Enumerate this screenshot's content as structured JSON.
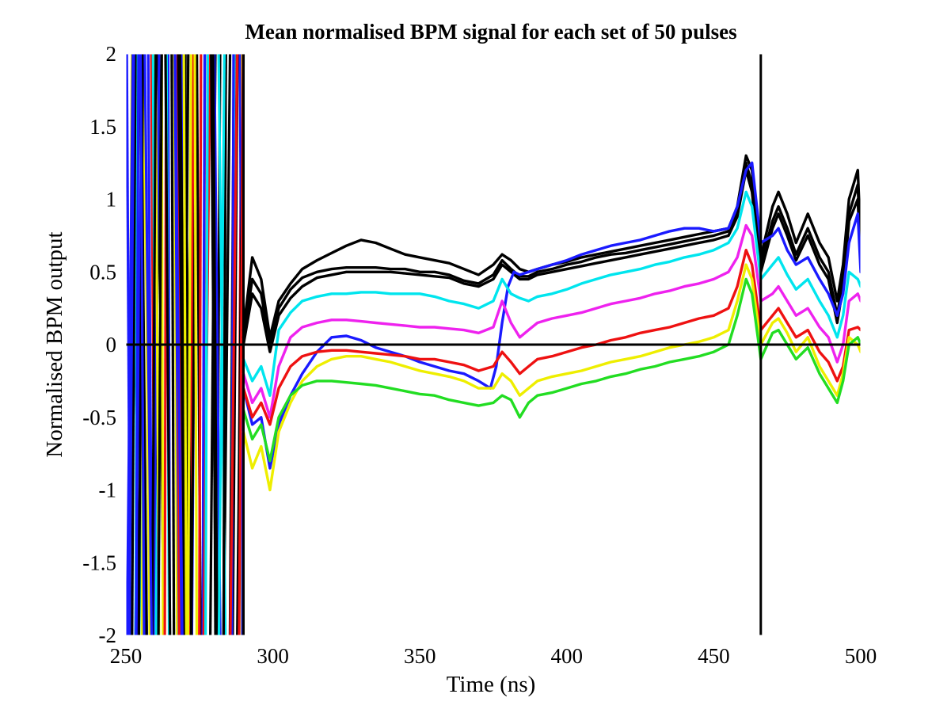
{
  "chart_data": {
    "type": "line",
    "title": "Mean normalised BPM signal for each set of 50 pulses",
    "xlabel": "Time (ns)",
    "ylabel": "Normalised BPM output",
    "xlim": [
      250,
      500
    ],
    "ylim": [
      -2,
      2
    ],
    "xticks": [
      "250",
      "300",
      "350",
      "400",
      "450",
      "500"
    ],
    "yticks": [
      "-2",
      "-1.5",
      "-1",
      "-0.5",
      "0",
      "0.5",
      "1",
      "1.5",
      "2"
    ],
    "grid": false,
    "legend": "none",
    "reference_lines": {
      "horizontal_y": 0,
      "vertical_x": [
        290,
        466
      ]
    },
    "series": [
      {
        "color": "#000000",
        "x": [
          290,
          293,
          296,
          299,
          302,
          306,
          310,
          315,
          320,
          325,
          330,
          335,
          340,
          345,
          350,
          355,
          360,
          365,
          370,
          375,
          378,
          381,
          384,
          387,
          390,
          395,
          400,
          405,
          410,
          415,
          420,
          425,
          430,
          435,
          440,
          445,
          450,
          455,
          458,
          461,
          463,
          466,
          470,
          472,
          475,
          478,
          482,
          486,
          489,
          492,
          494,
          496,
          499,
          500
        ],
        "values": [
          0.1,
          0.6,
          0.45,
          0.05,
          0.3,
          0.42,
          0.52,
          0.58,
          0.63,
          0.68,
          0.72,
          0.7,
          0.66,
          0.62,
          0.6,
          0.58,
          0.56,
          0.52,
          0.48,
          0.55,
          0.62,
          0.58,
          0.52,
          0.5,
          0.52,
          0.55,
          0.57,
          0.6,
          0.62,
          0.64,
          0.66,
          0.68,
          0.7,
          0.72,
          0.74,
          0.76,
          0.78,
          0.8,
          0.95,
          1.3,
          1.2,
          0.6,
          0.95,
          1.05,
          0.9,
          0.7,
          0.9,
          0.7,
          0.6,
          0.3,
          0.55,
          1.0,
          1.2,
          0.7
        ]
      },
      {
        "color": "#000000",
        "x": [
          290,
          293,
          296,
          299,
          302,
          306,
          310,
          315,
          320,
          325,
          330,
          335,
          340,
          345,
          350,
          355,
          360,
          365,
          370,
          375,
          378,
          381,
          384,
          387,
          390,
          395,
          400,
          405,
          410,
          415,
          420,
          425,
          430,
          435,
          440,
          445,
          450,
          455,
          458,
          461,
          463,
          466,
          470,
          472,
          475,
          478,
          482,
          486,
          489,
          492,
          494,
          496,
          499,
          500
        ],
        "values": [
          0.05,
          0.45,
          0.35,
          0.0,
          0.25,
          0.38,
          0.46,
          0.5,
          0.52,
          0.53,
          0.53,
          0.53,
          0.52,
          0.52,
          0.5,
          0.5,
          0.48,
          0.44,
          0.42,
          0.48,
          0.58,
          0.52,
          0.47,
          0.47,
          0.5,
          0.52,
          0.55,
          0.57,
          0.6,
          0.62,
          0.63,
          0.65,
          0.67,
          0.69,
          0.71,
          0.73,
          0.75,
          0.78,
          0.9,
          1.25,
          1.1,
          0.55,
          0.85,
          0.95,
          0.8,
          0.62,
          0.8,
          0.6,
          0.5,
          0.2,
          0.45,
          0.9,
          1.1,
          0.6
        ]
      },
      {
        "color": "#000000",
        "x": [
          290,
          293,
          296,
          299,
          302,
          306,
          310,
          315,
          320,
          325,
          330,
          335,
          340,
          345,
          350,
          355,
          360,
          365,
          370,
          375,
          378,
          381,
          384,
          387,
          390,
          395,
          400,
          405,
          410,
          415,
          420,
          425,
          430,
          435,
          440,
          445,
          450,
          455,
          458,
          461,
          463,
          466,
          470,
          472,
          475,
          478,
          482,
          486,
          489,
          492,
          494,
          496,
          499,
          500
        ],
        "values": [
          0.0,
          0.35,
          0.25,
          -0.05,
          0.2,
          0.32,
          0.4,
          0.46,
          0.48,
          0.5,
          0.5,
          0.5,
          0.5,
          0.49,
          0.48,
          0.47,
          0.46,
          0.42,
          0.4,
          0.45,
          0.55,
          0.5,
          0.45,
          0.45,
          0.48,
          0.5,
          0.52,
          0.54,
          0.56,
          0.58,
          0.6,
          0.62,
          0.64,
          0.66,
          0.68,
          0.7,
          0.72,
          0.75,
          0.88,
          1.2,
          1.05,
          0.5,
          0.8,
          0.9,
          0.75,
          0.58,
          0.75,
          0.55,
          0.45,
          0.15,
          0.4,
          0.85,
          1.0,
          0.55
        ]
      },
      {
        "color": "#1a1aff",
        "x": [
          290,
          293,
          296,
          299,
          302,
          306,
          310,
          315,
          320,
          325,
          330,
          335,
          340,
          345,
          350,
          355,
          360,
          365,
          370,
          374,
          376,
          378,
          380,
          382,
          384,
          387,
          390,
          395,
          400,
          405,
          410,
          415,
          420,
          425,
          430,
          435,
          440,
          445,
          450,
          455,
          458,
          461,
          463,
          466,
          470,
          472,
          475,
          478,
          482,
          486,
          489,
          492,
          494,
          496,
          499,
          500
        ],
        "values": [
          -0.3,
          -0.55,
          -0.5,
          -0.85,
          -0.55,
          -0.35,
          -0.2,
          -0.05,
          0.05,
          0.06,
          0.03,
          -0.02,
          -0.05,
          -0.08,
          -0.12,
          -0.15,
          -0.18,
          -0.2,
          -0.25,
          -0.3,
          -0.15,
          0.15,
          0.4,
          0.5,
          0.48,
          0.5,
          0.52,
          0.55,
          0.58,
          0.62,
          0.65,
          0.68,
          0.7,
          0.72,
          0.75,
          0.78,
          0.8,
          0.8,
          0.78,
          0.8,
          0.95,
          1.2,
          1.25,
          0.7,
          0.75,
          0.8,
          0.65,
          0.55,
          0.6,
          0.45,
          0.35,
          0.2,
          0.35,
          0.7,
          0.9,
          0.5
        ]
      },
      {
        "color": "#00e5ee",
        "x": [
          290,
          293,
          296,
          299,
          302,
          306,
          310,
          315,
          320,
          325,
          330,
          335,
          340,
          345,
          350,
          355,
          360,
          365,
          370,
          375,
          378,
          381,
          384,
          387,
          390,
          395,
          400,
          405,
          410,
          415,
          420,
          425,
          430,
          435,
          440,
          445,
          450,
          455,
          458,
          461,
          463,
          466,
          470,
          472,
          475,
          478,
          482,
          486,
          489,
          492,
          494,
          496,
          499,
          500
        ],
        "values": [
          -0.1,
          -0.25,
          -0.15,
          -0.35,
          0.1,
          0.22,
          0.3,
          0.33,
          0.35,
          0.35,
          0.36,
          0.36,
          0.35,
          0.35,
          0.35,
          0.33,
          0.3,
          0.28,
          0.25,
          0.3,
          0.45,
          0.35,
          0.32,
          0.3,
          0.33,
          0.35,
          0.38,
          0.42,
          0.45,
          0.48,
          0.5,
          0.52,
          0.55,
          0.57,
          0.6,
          0.62,
          0.65,
          0.7,
          0.8,
          1.05,
          0.95,
          0.45,
          0.55,
          0.6,
          0.48,
          0.38,
          0.45,
          0.3,
          0.2,
          0.05,
          0.2,
          0.5,
          0.45,
          0.4
        ]
      },
      {
        "color": "#ee22ee",
        "x": [
          290,
          293,
          296,
          299,
          302,
          306,
          310,
          315,
          320,
          325,
          330,
          335,
          340,
          345,
          350,
          355,
          360,
          365,
          370,
          375,
          378,
          381,
          384,
          387,
          390,
          395,
          400,
          405,
          410,
          415,
          420,
          425,
          430,
          435,
          440,
          445,
          450,
          455,
          458,
          461,
          463,
          466,
          470,
          472,
          475,
          478,
          482,
          486,
          489,
          492,
          494,
          496,
          499,
          500
        ],
        "values": [
          -0.2,
          -0.4,
          -0.3,
          -0.5,
          -0.15,
          0.05,
          0.12,
          0.15,
          0.17,
          0.17,
          0.16,
          0.15,
          0.14,
          0.13,
          0.12,
          0.12,
          0.11,
          0.1,
          0.08,
          0.12,
          0.3,
          0.15,
          0.05,
          0.1,
          0.15,
          0.18,
          0.2,
          0.22,
          0.25,
          0.28,
          0.3,
          0.32,
          0.35,
          0.37,
          0.4,
          0.42,
          0.45,
          0.5,
          0.6,
          0.82,
          0.75,
          0.3,
          0.35,
          0.4,
          0.3,
          0.2,
          0.25,
          0.12,
          0.05,
          -0.12,
          0.0,
          0.3,
          0.35,
          0.3
        ]
      },
      {
        "color": "#ee1111",
        "x": [
          290,
          293,
          296,
          299,
          302,
          306,
          310,
          315,
          320,
          325,
          330,
          335,
          340,
          345,
          350,
          355,
          360,
          365,
          370,
          375,
          378,
          381,
          384,
          387,
          390,
          395,
          400,
          405,
          410,
          415,
          420,
          425,
          430,
          435,
          440,
          445,
          450,
          455,
          458,
          461,
          463,
          466,
          470,
          472,
          475,
          478,
          482,
          486,
          489,
          492,
          494,
          496,
          499,
          500
        ],
        "values": [
          -0.3,
          -0.5,
          -0.4,
          -0.55,
          -0.3,
          -0.15,
          -0.08,
          -0.05,
          -0.04,
          -0.04,
          -0.05,
          -0.06,
          -0.07,
          -0.08,
          -0.1,
          -0.1,
          -0.12,
          -0.14,
          -0.18,
          -0.15,
          -0.05,
          -0.12,
          -0.2,
          -0.15,
          -0.1,
          -0.08,
          -0.05,
          -0.02,
          0.0,
          0.03,
          0.05,
          0.08,
          0.1,
          0.12,
          0.15,
          0.18,
          0.2,
          0.25,
          0.4,
          0.65,
          0.55,
          0.1,
          0.2,
          0.25,
          0.15,
          0.05,
          0.1,
          -0.05,
          -0.12,
          -0.25,
          -0.15,
          0.1,
          0.12,
          0.1
        ]
      },
      {
        "color": "#eeee00",
        "x": [
          290,
          293,
          296,
          299,
          302,
          306,
          310,
          315,
          320,
          325,
          330,
          335,
          340,
          345,
          350,
          355,
          360,
          365,
          370,
          375,
          378,
          381,
          384,
          387,
          390,
          395,
          400,
          405,
          410,
          415,
          420,
          425,
          430,
          435,
          440,
          445,
          450,
          455,
          458,
          461,
          463,
          466,
          470,
          472,
          475,
          478,
          482,
          486,
          489,
          492,
          494,
          496,
          499,
          500
        ],
        "values": [
          -0.6,
          -0.85,
          -0.7,
          -1.0,
          -0.6,
          -0.4,
          -0.25,
          -0.15,
          -0.1,
          -0.08,
          -0.08,
          -0.1,
          -0.12,
          -0.15,
          -0.18,
          -0.2,
          -0.22,
          -0.25,
          -0.3,
          -0.3,
          -0.2,
          -0.25,
          -0.35,
          -0.3,
          -0.25,
          -0.22,
          -0.2,
          -0.18,
          -0.15,
          -0.12,
          -0.1,
          -0.08,
          -0.05,
          -0.02,
          0.0,
          0.02,
          0.05,
          0.1,
          0.3,
          0.55,
          0.45,
          0.0,
          0.15,
          0.18,
          0.08,
          -0.05,
          0.05,
          -0.15,
          -0.25,
          -0.35,
          -0.2,
          0.05,
          0.0,
          -0.05
        ]
      },
      {
        "color": "#22dd22",
        "x": [
          290,
          293,
          296,
          299,
          302,
          306,
          310,
          315,
          320,
          325,
          330,
          335,
          340,
          345,
          350,
          355,
          360,
          365,
          370,
          375,
          378,
          381,
          384,
          387,
          390,
          395,
          400,
          405,
          410,
          415,
          420,
          425,
          430,
          435,
          440,
          445,
          450,
          455,
          458,
          461,
          463,
          466,
          470,
          472,
          475,
          478,
          482,
          486,
          489,
          492,
          494,
          496,
          499,
          500
        ],
        "values": [
          -0.45,
          -0.65,
          -0.55,
          -0.8,
          -0.5,
          -0.35,
          -0.28,
          -0.25,
          -0.25,
          -0.26,
          -0.27,
          -0.28,
          -0.3,
          -0.32,
          -0.34,
          -0.35,
          -0.38,
          -0.4,
          -0.42,
          -0.4,
          -0.35,
          -0.38,
          -0.5,
          -0.4,
          -0.35,
          -0.33,
          -0.3,
          -0.27,
          -0.25,
          -0.22,
          -0.2,
          -0.17,
          -0.15,
          -0.12,
          -0.1,
          -0.08,
          -0.05,
          0.0,
          0.2,
          0.45,
          0.35,
          -0.1,
          0.08,
          0.1,
          0.0,
          -0.1,
          -0.02,
          -0.2,
          -0.3,
          -0.4,
          -0.25,
          0.0,
          0.05,
          0.0
        ]
      }
    ]
  }
}
